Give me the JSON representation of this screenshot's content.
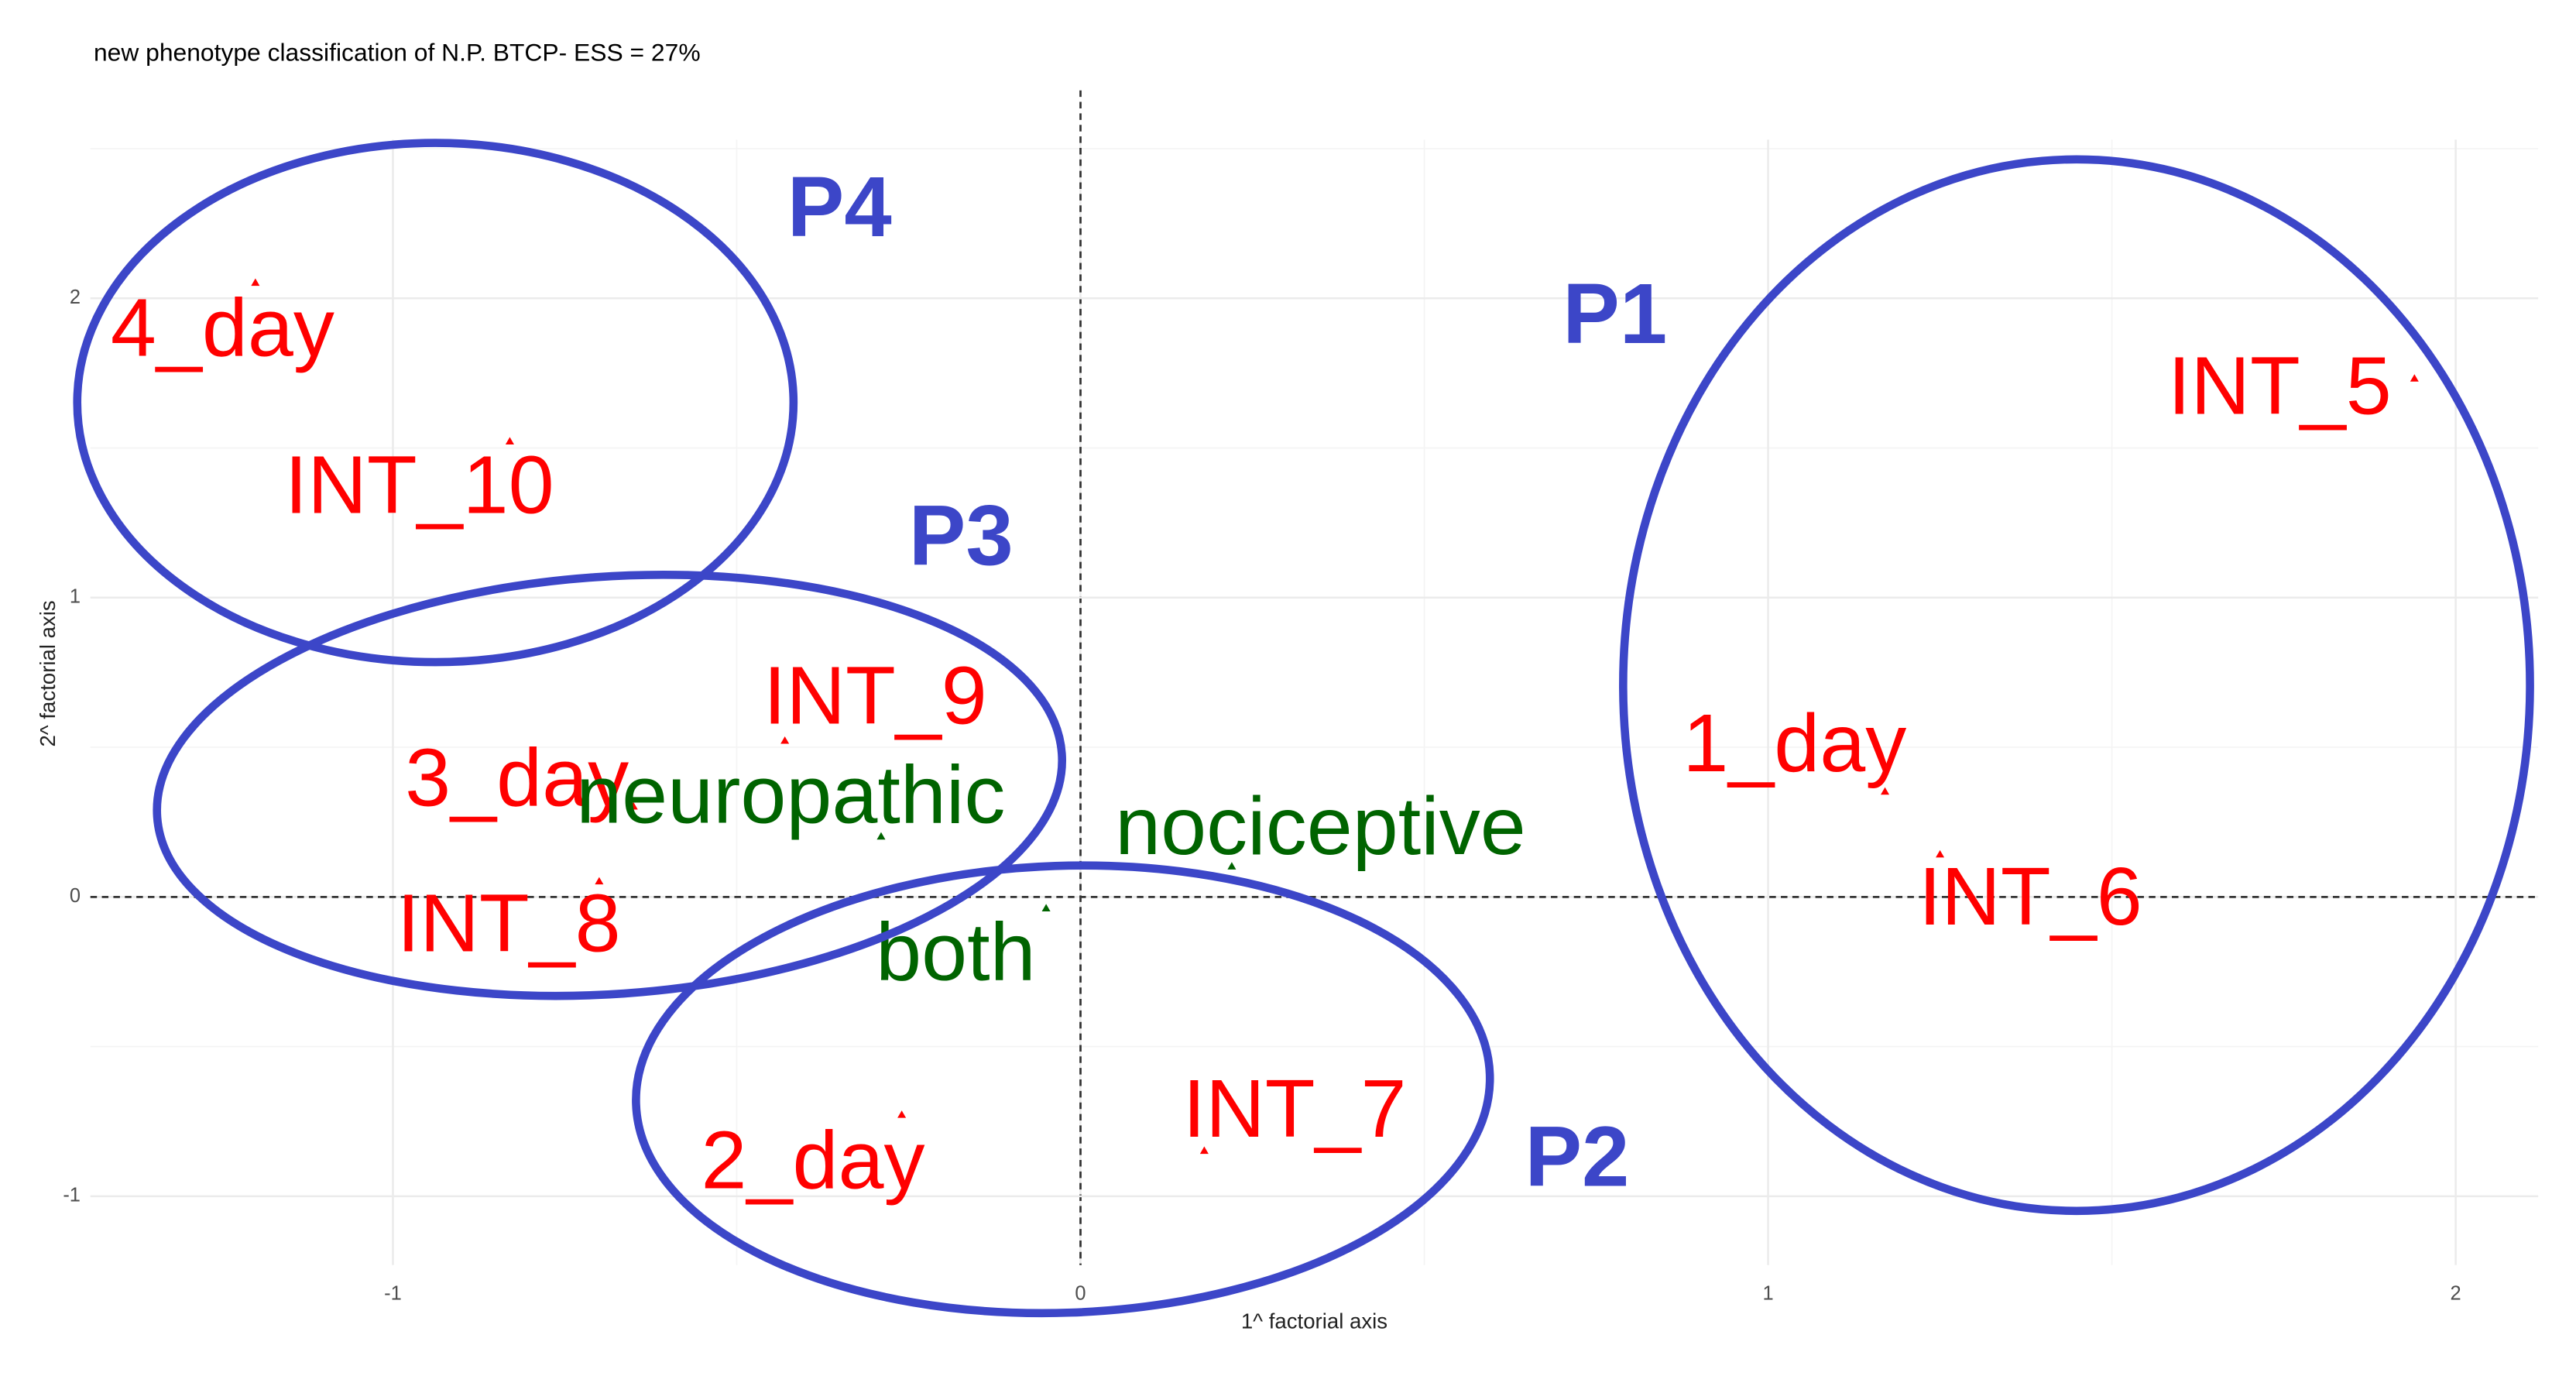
{
  "chart_data": {
    "type": "scatter",
    "title": "new phenotype classification of N.P. BTCP- ESS = 27%",
    "x_label": "1^ factorial axis",
    "y_label": "2^ factorial axis",
    "xlim": [
      -1.44,
      2.12
    ],
    "ylim": [
      -1.23,
      2.53
    ],
    "xticks": [
      -1,
      0,
      1,
      2
    ],
    "yticks": [
      -1,
      0,
      1,
      2
    ],
    "grid": true,
    "series": [
      {
        "color": "#ff0000",
        "labels": [
          "4_day",
          "INT_10",
          "INT_9",
          "3_day",
          "INT_8",
          "2_day",
          "INT_7",
          "1_day",
          "INT_6",
          "INT_5"
        ],
        "x": [
          -1.2,
          -0.83,
          -0.43,
          -0.65,
          -0.7,
          -0.26,
          0.18,
          1.17,
          1.25,
          1.94
        ],
        "values": [
          2.05,
          1.52,
          0.52,
          0.3,
          0.05,
          -0.73,
          -0.85,
          0.35,
          0.14,
          1.73
        ]
      },
      {
        "color": "#006400",
        "labels": [
          "neuropathic",
          "nociceptive",
          "both"
        ],
        "x": [
          -0.29,
          0.22,
          -0.05
        ],
        "values": [
          0.2,
          0.1,
          -0.04
        ]
      }
    ],
    "annotations": [
      "P1",
      "P2",
      "P3",
      "P4"
    ]
  }
}
